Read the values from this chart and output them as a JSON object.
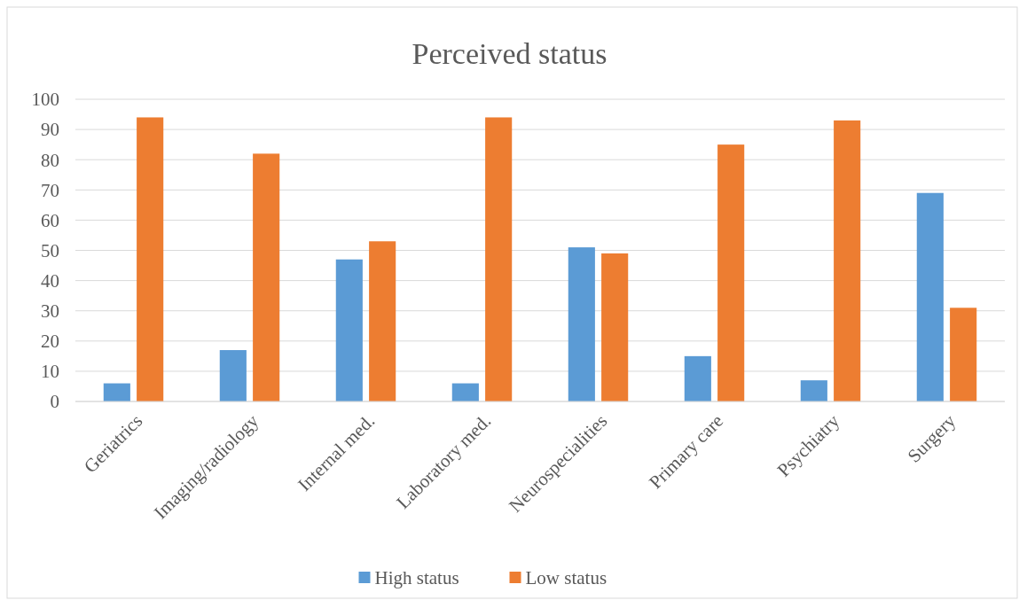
{
  "chart_data": {
    "type": "bar",
    "title": "Perceived status",
    "categories": [
      "Geriatrics",
      "Imaging/radiology",
      "Internal med.",
      "Laboratory med.",
      "Neurospecialities",
      "Primary care",
      "Psychiatry",
      "Surgery"
    ],
    "series": [
      {
        "name": "High status",
        "color": "#5b9bd5",
        "values": [
          6,
          17,
          47,
          6,
          51,
          15,
          7,
          69
        ]
      },
      {
        "name": "Low status",
        "color": "#ed7d31",
        "values": [
          94,
          82,
          53,
          94,
          49,
          85,
          93,
          31
        ]
      }
    ],
    "ylim": [
      0,
      100
    ],
    "yticks": [
      0,
      10,
      20,
      30,
      40,
      50,
      60,
      70,
      80,
      90,
      100
    ],
    "grid": "y",
    "legend": "bottom"
  }
}
